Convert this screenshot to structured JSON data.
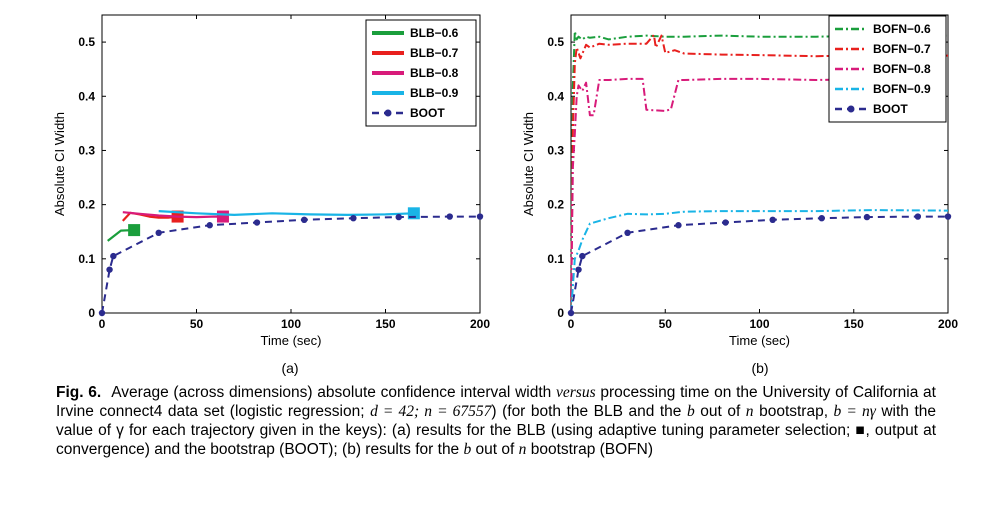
{
  "chart_data": [
    {
      "type": "line",
      "panel_label": "(a)",
      "xlabel": "Time (sec)",
      "ylabel": "Absolute CI Width",
      "xlim": [
        0,
        200
      ],
      "ylim": [
        0,
        0.55
      ],
      "xticks": [
        "0",
        "50",
        "100",
        "150",
        "200"
      ],
      "yticks": [
        "0",
        "0.1",
        "0.2",
        "0.3",
        "0.4",
        "0.5"
      ],
      "legend_position": "top-right",
      "series": [
        {
          "name": "BLB−0.6",
          "color": "#1a9e3c",
          "style": "solid",
          "marker_end": "square",
          "x": [
            3,
            10,
            17
          ],
          "y": [
            0.133,
            0.152,
            0.153
          ]
        },
        {
          "name": "BLB−0.7",
          "color": "#e8201e",
          "style": "solid",
          "marker_end": "square",
          "x": [
            11,
            15,
            20,
            25,
            30,
            35,
            40
          ],
          "y": [
            0.17,
            0.185,
            0.182,
            0.178,
            0.176,
            0.176,
            0.178
          ]
        },
        {
          "name": "BLB−0.8",
          "color": "#d81b7a",
          "style": "solid",
          "marker_end": "square",
          "x": [
            11,
            20,
            30,
            40,
            50,
            58,
            64
          ],
          "y": [
            0.186,
            0.183,
            0.18,
            0.178,
            0.177,
            0.178,
            0.178
          ]
        },
        {
          "name": "BLB−0.9",
          "color": "#19b4e6",
          "style": "solid",
          "marker_end": "square",
          "x": [
            30,
            50,
            70,
            90,
            110,
            130,
            150,
            165
          ],
          "y": [
            0.188,
            0.184,
            0.181,
            0.184,
            0.182,
            0.181,
            0.182,
            0.184
          ]
        },
        {
          "name": "BOOT",
          "color": "#2b2b8e",
          "style": "dashed",
          "marker": "dot",
          "x": [
            0,
            4,
            6,
            30,
            57,
            82,
            107,
            133,
            157,
            184,
            200
          ],
          "y": [
            0.0,
            0.08,
            0.105,
            0.148,
            0.162,
            0.167,
            0.172,
            0.175,
            0.177,
            0.178,
            0.178
          ]
        }
      ]
    },
    {
      "type": "line",
      "panel_label": "(b)",
      "xlabel": "Time (sec)",
      "ylabel": "Absolute CI Width",
      "xlim": [
        0,
        200
      ],
      "ylim": [
        0,
        0.55
      ],
      "xticks": [
        "0",
        "50",
        "100",
        "150",
        "200"
      ],
      "yticks": [
        "0",
        "0.1",
        "0.2",
        "0.3",
        "0.4",
        "0.5"
      ],
      "legend_position": "top-right",
      "series": [
        {
          "name": "BOFN−0.6",
          "color": "#1a9e3c",
          "style": "dashdot",
          "x": [
            0,
            1,
            2,
            3,
            4,
            6,
            8,
            10,
            15,
            20,
            30,
            40,
            50,
            60,
            80,
            100,
            130,
            160,
            200
          ],
          "y": [
            0.0,
            0.42,
            0.52,
            0.505,
            0.51,
            0.505,
            0.51,
            0.508,
            0.51,
            0.505,
            0.51,
            0.512,
            0.51,
            0.51,
            0.512,
            0.51,
            0.51,
            0.512,
            0.512
          ]
        },
        {
          "name": "BOFN−0.7",
          "color": "#e8201e",
          "style": "dashdot",
          "x": [
            0,
            1,
            2,
            3,
            5,
            8,
            10,
            15,
            20,
            30,
            40,
            44,
            45,
            48,
            50,
            55,
            60,
            80,
            100,
            130,
            160,
            200
          ],
          "y": [
            0.0,
            0.34,
            0.46,
            0.49,
            0.47,
            0.495,
            0.49,
            0.497,
            0.495,
            0.497,
            0.497,
            0.513,
            0.49,
            0.512,
            0.48,
            0.485,
            0.479,
            0.477,
            0.476,
            0.474,
            0.476,
            0.475
          ]
        },
        {
          "name": "BOFN−0.8",
          "color": "#d81b7a",
          "style": "dashdot",
          "x": [
            0,
            1,
            2,
            3,
            4,
            6,
            8,
            10,
            12,
            15,
            20,
            30,
            38,
            40,
            50,
            53,
            57,
            60,
            80,
            100,
            130,
            160,
            200
          ],
          "y": [
            0.0,
            0.27,
            0.33,
            0.4,
            0.42,
            0.41,
            0.425,
            0.365,
            0.365,
            0.43,
            0.43,
            0.432,
            0.432,
            0.375,
            0.373,
            0.376,
            0.43,
            0.43,
            0.432,
            0.432,
            0.43,
            0.432,
            0.432
          ]
        },
        {
          "name": "BOFN−0.9",
          "color": "#19b4e6",
          "style": "dashdot",
          "x": [
            0,
            2,
            4,
            6,
            10,
            15,
            20,
            30,
            40,
            50,
            60,
            80,
            100,
            130,
            160,
            200
          ],
          "y": [
            0.0,
            0.1,
            0.115,
            0.135,
            0.165,
            0.17,
            0.175,
            0.183,
            0.182,
            0.183,
            0.187,
            0.188,
            0.188,
            0.188,
            0.19,
            0.189
          ]
        },
        {
          "name": "BOOT",
          "color": "#2b2b8e",
          "style": "dashed",
          "marker": "dot",
          "x": [
            0,
            4,
            6,
            30,
            57,
            82,
            107,
            133,
            157,
            184,
            200
          ],
          "y": [
            0.0,
            0.08,
            0.105,
            0.148,
            0.162,
            0.167,
            0.172,
            0.175,
            0.177,
            0.178,
            0.178
          ]
        }
      ]
    }
  ],
  "caption": {
    "label": "Fig. 6.",
    "text_1": "Average (across dimensions) absolute confidence interval width ",
    "versus": "versus",
    "text_2": " processing time on the University of California at Irvine connect4 data set (logistic regression; ",
    "d_eq": "d = 42; n = 67557",
    "text_3": ") (for both the BLB and the ",
    "b1": "b",
    "text_4": " out of ",
    "n1": "n",
    "text_5": " bootstrap, ",
    "formula": "b = nγ",
    "text_6": " with the value of γ for each trajectory given in the keys): (a) results for the BLB (using adaptive tuning parameter selection; ■, output at convergence) and the bootstrap (BOOT); (b) results for the ",
    "b2": "b",
    "text_7": " out of ",
    "n2": "n",
    "text_8": " bootstrap (BOFN)"
  }
}
